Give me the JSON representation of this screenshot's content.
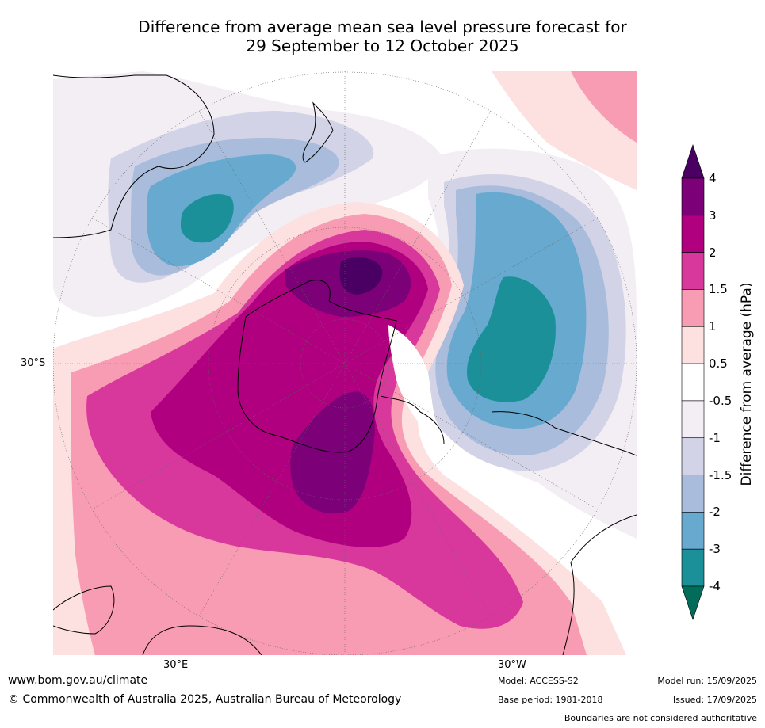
{
  "title": {
    "line1": "Difference from average mean sea level pressure forecast for",
    "line2": "29 September to 12 October 2025"
  },
  "map_labels": {
    "lat_left": "30°S",
    "lon_bottom_left": "30°E",
    "lon_bottom_right": "30°W"
  },
  "colorbar": {
    "title": "Difference from average (hPa)",
    "tick_labels": [
      "4",
      "3",
      "2",
      "1.5",
      "1",
      "0.5",
      "-0.5",
      "-1",
      "-1.5",
      "-2",
      "-3",
      "-4"
    ],
    "colors": [
      "#4a0062",
      "#7c0078",
      "#b0007f",
      "#d8389c",
      "#f89cb4",
      "#fde0e0",
      "#ffffff",
      "#f3edf4",
      "#d2d3e7",
      "#a9bcdb",
      "#67a9cf",
      "#1b9098",
      "#016c59"
    ]
  },
  "footer": {
    "website": "www.bom.gov.au/climate",
    "copyright": "© Commonwealth of Australia 2025, Australian Bureau of Meteorology",
    "model": "Model: ACCESS-S2",
    "base_period": "Base period: 1981-2018",
    "model_run": "Model run: 15/09/2025",
    "issued": "Issued: 17/09/2025",
    "disclaimer": "Boundaries are not considered authoritative"
  }
}
